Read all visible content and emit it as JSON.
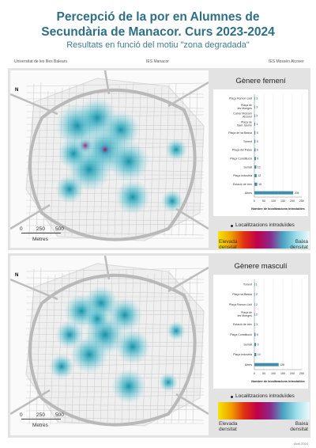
{
  "header": {
    "title_line1": "Percepció de la por en Alumnes de",
    "title_line2": "Secundària de Manacor. Curs 2023-2024",
    "subtitle": "Resultats en funció del motiu \"zona degradada\"",
    "institutions": [
      "Universitat de les Illes Balears",
      "IES Manacor",
      "IES Mossèn Alcover"
    ]
  },
  "panels": [
    {
      "title": "Gènere femení",
      "legend_locations": "Localitzacions introduïdes",
      "legend_high": "Elevada densitat",
      "legend_low": "Baixa densitat",
      "scale_labels": [
        "0",
        "250",
        "500"
      ],
      "scale_unit": "Metres",
      "north": "N",
      "chart_data": {
        "type": "bar",
        "categories": [
          "Plaça Ramon Llull",
          "Plaça de les Monges",
          "Carrer Mossèn Alcover",
          "Plaça de Sant Jaume",
          "Plaça de sa Bassa",
          "Torrent",
          "Plaça del Palau",
          "Plaça Constitució",
          "Serralt",
          "Plaça Industria",
          "Estació de tren",
          "Altres"
        ],
        "values": [
          3,
          3,
          3,
          4,
          5,
          5,
          6,
          8,
          10,
          12,
          15,
          205
        ],
        "value_labels": [
          "3",
          "3",
          "3",
          "4",
          "5",
          "5",
          "6",
          "8",
          "10",
          "12",
          "15",
          "205"
        ],
        "xlabel": "Nombre de localitzacions introduïdes",
        "xticks": [
          "0",
          "50",
          "100",
          "150",
          "200",
          "250"
        ],
        "xlim": [
          0,
          250
        ]
      }
    },
    {
      "title": "Gènere masculí",
      "legend_locations": "Localitzacions introduïdes",
      "legend_high": "Elevada densitat",
      "legend_low": "Baixa densitat",
      "scale_labels": [
        "0",
        "250",
        "500"
      ],
      "scale_unit": "Metres",
      "north": "N",
      "chart_data": {
        "type": "bar",
        "categories": [
          "Torrent",
          "Plaça sa Bassa",
          "Plaça Ramon Llull",
          "Plaça de les Monges",
          "Estació de tren",
          "Plaça Constitució",
          "Serralt",
          "Plaça Industria",
          "Altres"
        ],
        "values": [
          1,
          2,
          2,
          2,
          3,
          6,
          9,
          10,
          128
        ],
        "value_labels": [
          "1",
          "2",
          "2",
          "2",
          "3",
          "6",
          "9",
          "10",
          "128"
        ],
        "xlabel": "Nombre de localitzacions introduïdes",
        "xticks": [
          "0",
          "50",
          "100",
          "150",
          "200",
          "250"
        ],
        "xlim": [
          0,
          250
        ]
      }
    }
  ],
  "colors": {
    "title": "#2f6f85",
    "bar": "#3d8ea6",
    "hot": "#1aa0b4",
    "panel": "#e3e3e3"
  },
  "footer": "Abril 2024"
}
